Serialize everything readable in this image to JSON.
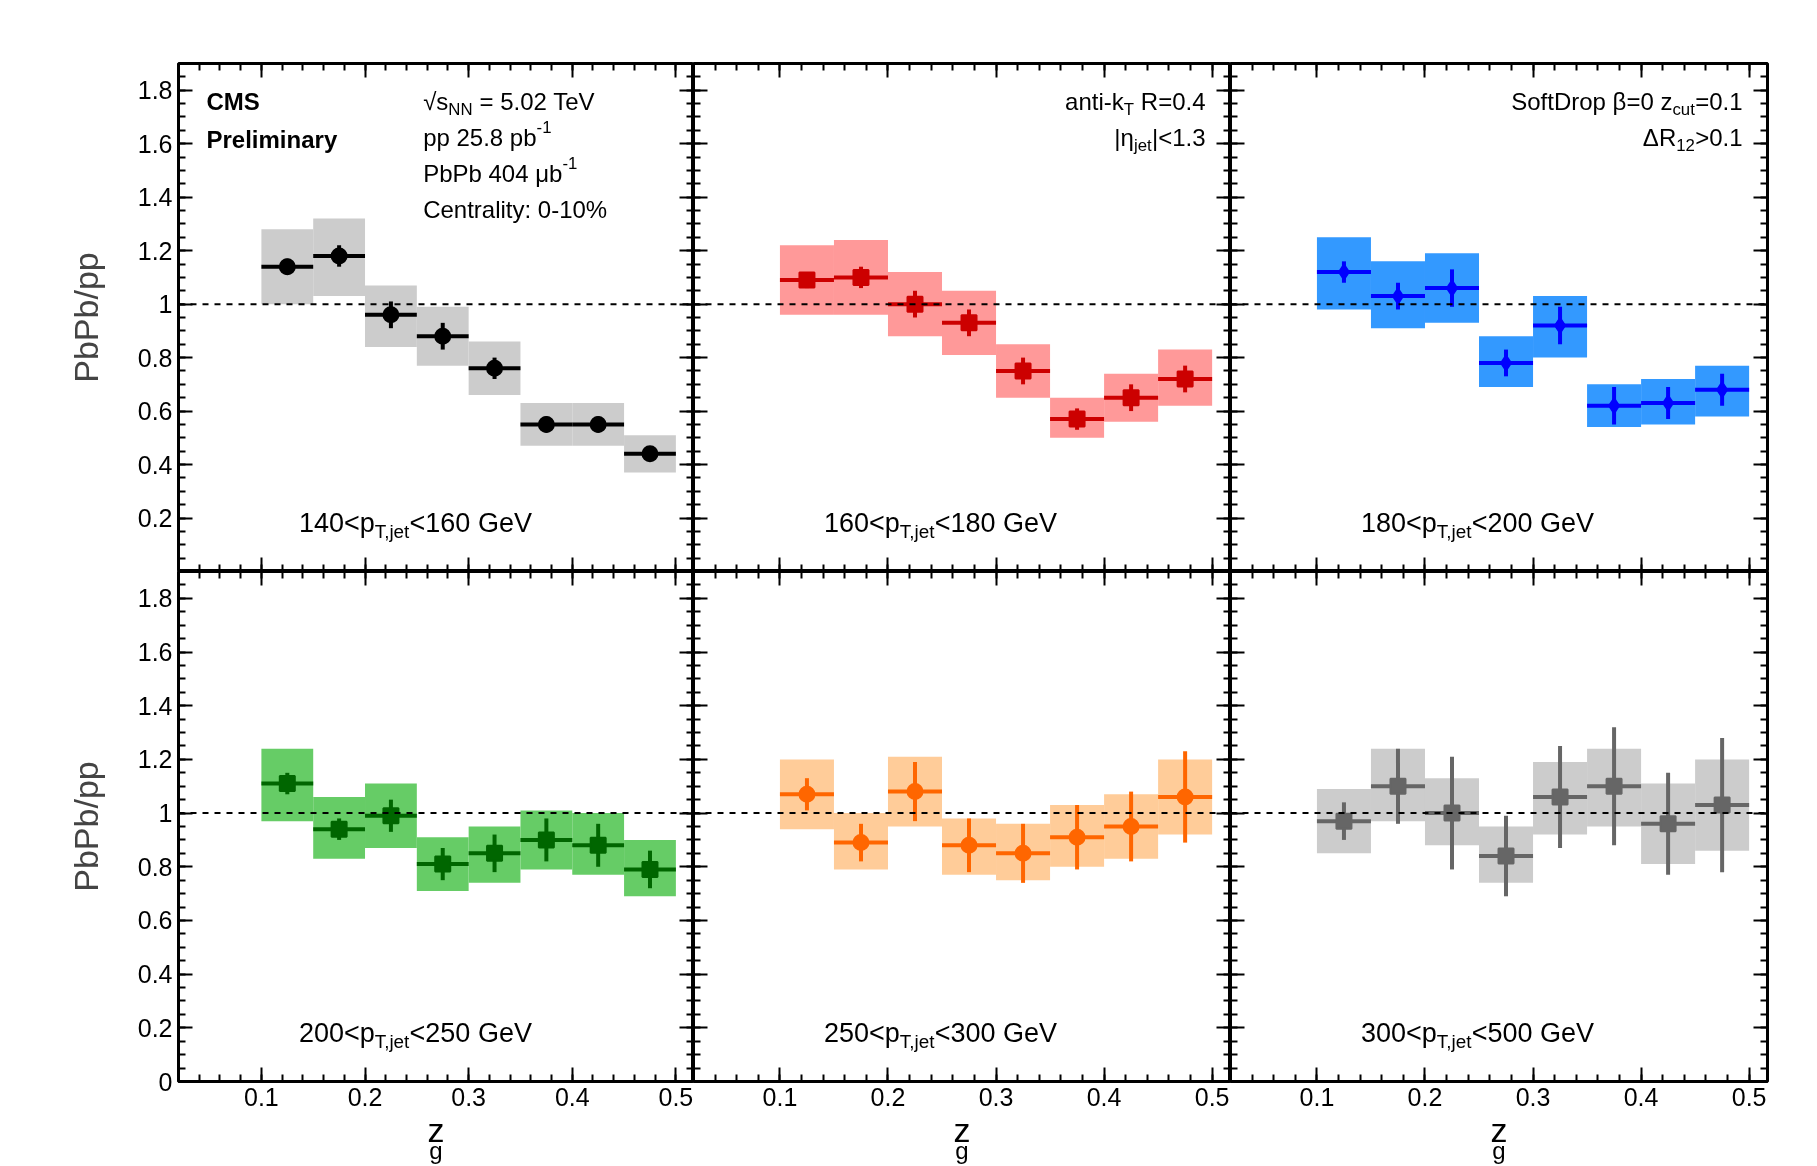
{
  "chart_data": [
    {
      "type": "scatter",
      "ylabel": "PbPb/pp",
      "xlim": [
        0.02,
        0.517
      ],
      "ylim": [
        0,
        1.9
      ],
      "xticks": [
        0.1,
        0.2,
        0.3,
        0.4,
        0.5
      ],
      "yticks": [
        {
          "value": 0,
          "label": null
        },
        0.2,
        0.4,
        0.6,
        0.8,
        1,
        1.2,
        1.4,
        1.6,
        1.8
      ],
      "tick_labels": "y",
      "annotations": [
        "CMS",
        "Preliminary",
        "√s$_{NN}$ = 5.02 TeV",
        "pp 25.8 pb$^{-1}$",
        "PbPb 404 μb$^{-1}$",
        "Centrality: 0-10%",
        "140<p$_{T,jet}$<160 GeV"
      ],
      "ref_lines": [
        {
          "axis": "y",
          "value": 1,
          "color": "#000000",
          "line_style": "dashed"
        }
      ],
      "series": [
        {
          "type": "bar",
          "color": "#cccccc",
          "x": [
            0.125,
            0.175,
            0.225,
            0.275,
            0.325,
            0.375,
            0.425,
            0.475
          ],
          "base": [
            1.0,
            1.03,
            0.84,
            0.77,
            0.66,
            0.47,
            0.47,
            0.37
          ],
          "values": [
            0.28,
            0.29,
            0.23,
            0.22,
            0.2,
            0.16,
            0.16,
            0.14
          ]
        },
        {
          "color": "#000000",
          "marker": "circle",
          "x": [
            0.125,
            0.175,
            0.225,
            0.275,
            0.325,
            0.375,
            0.425,
            0.475
          ],
          "values": [
            1.14,
            1.18,
            0.96,
            0.88,
            0.76,
            0.55,
            0.55,
            0.44
          ],
          "errors": [
            0.03,
            0.04,
            0.05,
            0.05,
            0.04,
            0.03,
            0.03,
            0.02
          ],
          "xerrors": [
            0.025,
            0.025,
            0.025,
            0.025,
            0.025,
            0.025,
            0.025,
            0.025
          ]
        }
      ]
    },
    {
      "type": "scatter",
      "xlim": [
        0.02,
        0.517
      ],
      "ylim": [
        0,
        1.9
      ],
      "xticks": [
        0.1,
        0.2,
        0.3,
        0.4,
        0.5
      ],
      "yticks": [
        0,
        0.2,
        0.4,
        0.6,
        0.8,
        1,
        1.2,
        1.4,
        1.6,
        1.8
      ],
      "tick_labels": false,
      "annotations": [
        "anti-k$_{T}$ R=0.4",
        "|η$_{jet}$|<1.3",
        "160<p$_{T,jet}$<180 GeV"
      ],
      "ref_lines": [
        {
          "axis": "y",
          "value": 1,
          "color": "#000000",
          "line_style": "dashed"
        }
      ],
      "series": [
        {
          "type": "bar",
          "color": "#ff9999",
          "x": [
            0.125,
            0.175,
            0.225,
            0.275,
            0.325,
            0.375,
            0.425,
            0.475
          ],
          "base": [
            0.96,
            0.96,
            0.88,
            0.81,
            0.65,
            0.5,
            0.56,
            0.62
          ],
          "values": [
            0.26,
            0.28,
            0.24,
            0.24,
            0.2,
            0.15,
            0.18,
            0.21
          ]
        },
        {
          "color": "#cc0000",
          "marker": "square",
          "x": [
            0.125,
            0.175,
            0.225,
            0.275,
            0.325,
            0.375,
            0.425,
            0.475
          ],
          "values": [
            1.09,
            1.1,
            1.0,
            0.93,
            0.75,
            0.57,
            0.65,
            0.72
          ],
          "errors": [
            0.03,
            0.04,
            0.05,
            0.05,
            0.05,
            0.04,
            0.05,
            0.05
          ],
          "xerrors": [
            0.025,
            0.025,
            0.025,
            0.025,
            0.025,
            0.025,
            0.025,
            0.025
          ]
        }
      ]
    },
    {
      "type": "scatter",
      "xlim": [
        0.02,
        0.517
      ],
      "ylim": [
        0,
        1.9
      ],
      "xticks": [
        0.1,
        0.2,
        0.3,
        0.4,
        0.5
      ],
      "yticks": [
        0,
        0.2,
        0.4,
        0.6,
        0.8,
        1,
        1.2,
        1.4,
        1.6,
        1.8
      ],
      "tick_labels": false,
      "annotations": [
        "SoftDrop β=0 z$_{cut}$=0.1",
        "ΔR$_{12}$>0.1",
        "180<p$_{T,jet}$<200 GeV"
      ],
      "ref_lines": [
        {
          "axis": "y",
          "value": 1,
          "color": "#000000",
          "line_style": "dashed"
        }
      ],
      "series": [
        {
          "type": "bar",
          "color": "#3399ff",
          "x": [
            0.125,
            0.175,
            0.225,
            0.275,
            0.325,
            0.375,
            0.425,
            0.475
          ],
          "base": [
            0.98,
            0.91,
            0.93,
            0.69,
            0.8,
            0.54,
            0.55,
            0.58
          ],
          "values": [
            0.27,
            0.25,
            0.26,
            0.19,
            0.23,
            0.16,
            0.17,
            0.19
          ]
        },
        {
          "color": "#0000ff",
          "marker": "diamond",
          "x": [
            0.125,
            0.175,
            0.225,
            0.275,
            0.325,
            0.375,
            0.425,
            0.475
          ],
          "values": [
            1.12,
            1.03,
            1.06,
            0.78,
            0.92,
            0.62,
            0.63,
            0.68
          ],
          "errors": [
            0.04,
            0.05,
            0.07,
            0.05,
            0.07,
            0.07,
            0.06,
            0.06
          ],
          "xerrors": [
            0.025,
            0.025,
            0.025,
            0.025,
            0.025,
            0.025,
            0.025,
            0.025
          ]
        }
      ]
    },
    {
      "type": "scatter",
      "ylabel": "PbPb/pp",
      "xlabel": "z$_{g}$",
      "xlim": [
        0.02,
        0.517
      ],
      "ylim": [
        0,
        1.9
      ],
      "xticks": [
        0.1,
        0.2,
        0.3,
        0.4,
        0.5
      ],
      "yticks": [
        0,
        0.2,
        0.4,
        0.6,
        0.8,
        1,
        1.2,
        1.4,
        1.6,
        1.8
      ],
      "annotations": [
        "200<p$_{T,jet}$<250 GeV"
      ],
      "ref_lines": [
        {
          "axis": "y",
          "value": 1,
          "color": "#000000",
          "line_style": "dashed"
        }
      ],
      "series": [
        {
          "type": "bar",
          "color": "#66cc66",
          "x": [
            0.125,
            0.175,
            0.225,
            0.275,
            0.325,
            0.375,
            0.425,
            0.475
          ],
          "base": [
            0.97,
            0.83,
            0.87,
            0.71,
            0.74,
            0.79,
            0.77,
            0.69
          ],
          "values": [
            0.27,
            0.23,
            0.24,
            0.2,
            0.21,
            0.22,
            0.23,
            0.21
          ]
        },
        {
          "color": "#006600",
          "marker": "square",
          "x": [
            0.125,
            0.175,
            0.225,
            0.275,
            0.325,
            0.375,
            0.425,
            0.475
          ],
          "values": [
            1.11,
            0.94,
            0.99,
            0.81,
            0.85,
            0.9,
            0.88,
            0.79
          ],
          "errors": [
            0.04,
            0.04,
            0.06,
            0.06,
            0.07,
            0.08,
            0.08,
            0.07
          ],
          "xerrors": [
            0.025,
            0.025,
            0.025,
            0.025,
            0.025,
            0.025,
            0.025,
            0.025
          ]
        }
      ]
    },
    {
      "type": "scatter",
      "xlabel": "z$_{g}$",
      "xlim": [
        0.02,
        0.517
      ],
      "ylim": [
        0,
        1.9
      ],
      "xticks": [
        0.1,
        0.2,
        0.3,
        0.4,
        0.5
      ],
      "yticks": [
        0,
        0.2,
        0.4,
        0.6,
        0.8,
        1,
        1.2,
        1.4,
        1.6,
        1.8
      ],
      "tick_labels": "x",
      "annotations": [
        "250<p$_{T,jet}$<300 GeV"
      ],
      "ref_lines": [
        {
          "axis": "y",
          "value": 1,
          "color": "#000000",
          "line_style": "dashed"
        }
      ],
      "series": [
        {
          "type": "bar",
          "color": "#ffcc99",
          "x": [
            0.125,
            0.175,
            0.225,
            0.275,
            0.325,
            0.375,
            0.425,
            0.475
          ],
          "base": [
            0.94,
            0.79,
            0.95,
            0.77,
            0.75,
            0.8,
            0.83,
            0.92
          ],
          "values": [
            0.26,
            0.21,
            0.26,
            0.21,
            0.21,
            0.23,
            0.24,
            0.28
          ]
        },
        {
          "color": "#ff6600",
          "marker": "circle",
          "x": [
            0.125,
            0.175,
            0.225,
            0.275,
            0.325,
            0.375,
            0.425,
            0.475
          ],
          "values": [
            1.07,
            0.89,
            1.08,
            0.88,
            0.85,
            0.91,
            0.95,
            1.06
          ],
          "errors": [
            0.06,
            0.07,
            0.11,
            0.1,
            0.11,
            0.12,
            0.13,
            0.17
          ],
          "xerrors": [
            0.025,
            0.025,
            0.025,
            0.025,
            0.025,
            0.025,
            0.025,
            0.025
          ]
        }
      ]
    },
    {
      "type": "scatter",
      "xlabel": "z$_{g}$",
      "xlim": [
        0.02,
        0.517
      ],
      "ylim": [
        0,
        1.9
      ],
      "xticks": [
        0.1,
        0.2,
        0.3,
        0.4,
        0.5
      ],
      "yticks": [
        0,
        0.2,
        0.4,
        0.6,
        0.8,
        1,
        1.2,
        1.4,
        1.6,
        1.8
      ],
      "tick_labels": "x",
      "annotations": [
        "300<p$_{T,jet}$<500 GeV"
      ],
      "ref_lines": [
        {
          "axis": "y",
          "value": 1,
          "color": "#000000",
          "line_style": "dashed"
        }
      ],
      "series": [
        {
          "type": "bar",
          "color": "#cccccc",
          "x": [
            0.125,
            0.175,
            0.225,
            0.275,
            0.325,
            0.375,
            0.425,
            0.475
          ],
          "base": [
            0.85,
            0.97,
            0.88,
            0.74,
            0.92,
            0.95,
            0.81,
            0.86
          ],
          "values": [
            0.24,
            0.27,
            0.25,
            0.21,
            0.27,
            0.29,
            0.3,
            0.34
          ]
        },
        {
          "color": "#666666",
          "marker": "square",
          "x": [
            0.125,
            0.175,
            0.225,
            0.275,
            0.325,
            0.375,
            0.425,
            0.475
          ],
          "values": [
            0.97,
            1.1,
            1.0,
            0.84,
            1.06,
            1.1,
            0.96,
            1.03
          ],
          "errors": [
            0.07,
            0.14,
            0.21,
            0.15,
            0.19,
            0.22,
            0.19,
            0.25
          ],
          "xerrors": [
            0.025,
            0.025,
            0.025,
            0.025,
            0.025,
            0.025,
            0.025,
            0.025
          ]
        }
      ]
    }
  ]
}
